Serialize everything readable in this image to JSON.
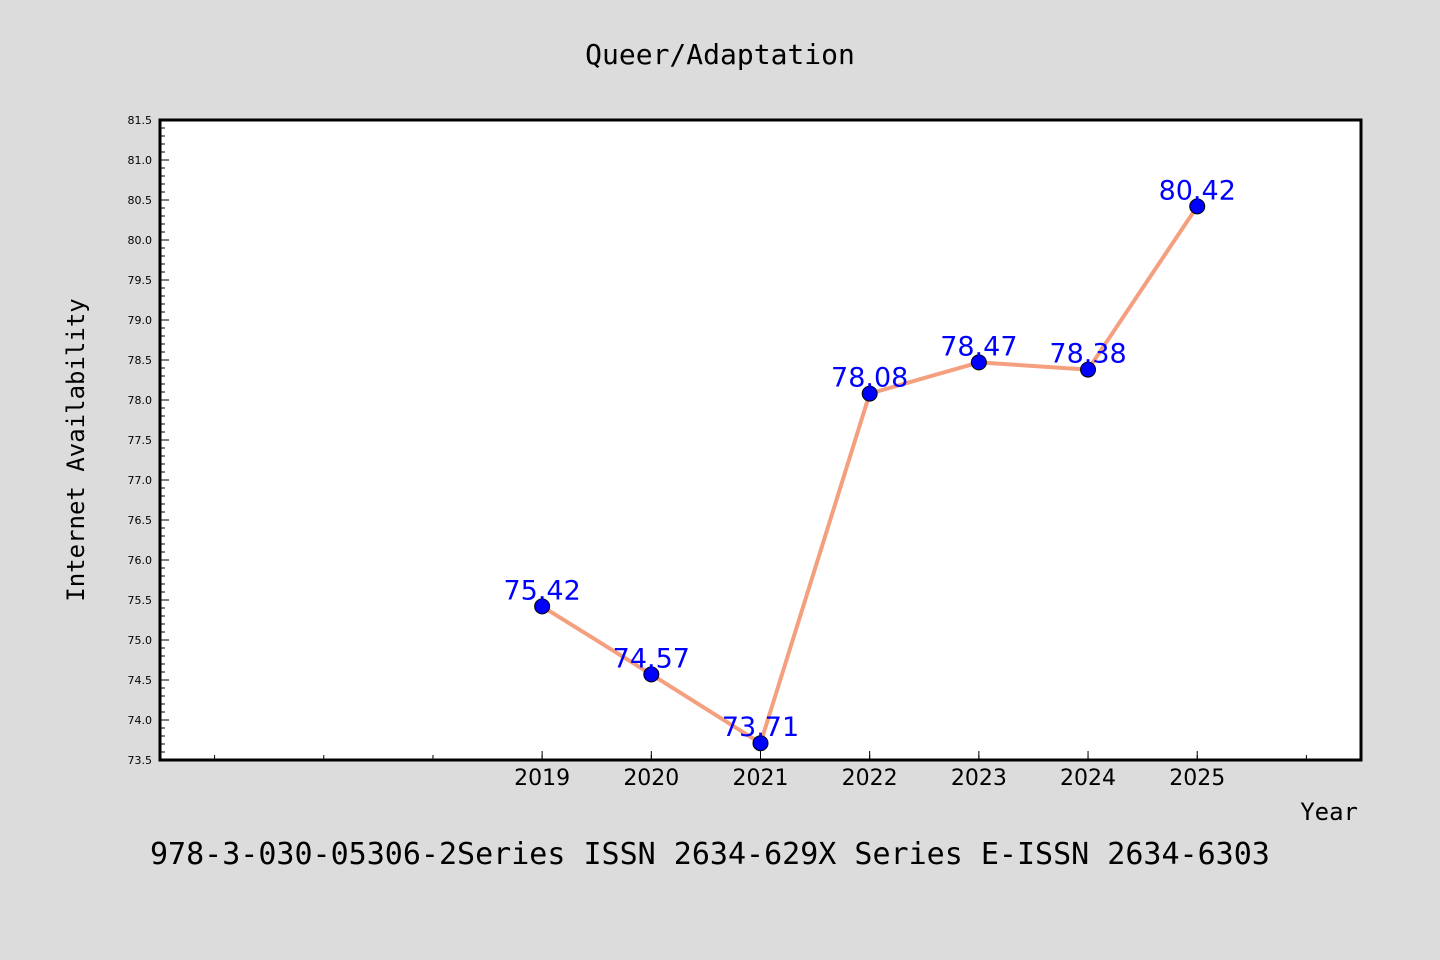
{
  "chart_data": {
    "type": "line",
    "title": "Queer/Adaptation",
    "xlabel": "Year",
    "ylabel": "Internet Availability",
    "x": [
      2019,
      2020,
      2021,
      2022,
      2023,
      2024,
      2025
    ],
    "x_tick_labels": [
      "2019",
      "2020",
      "2021",
      "2022",
      "2023",
      "2024",
      "2025"
    ],
    "xlim": [
      2015.5,
      2026.5
    ],
    "y": [
      75.42,
      74.57,
      73.71,
      78.08,
      78.47,
      78.38,
      80.42
    ],
    "data_labels": [
      "75.42",
      "74.57",
      "73.71",
      "78.08",
      "78.47",
      "78.38",
      "80.42"
    ],
    "ylim": [
      73.5,
      81.5
    ],
    "y_ticks": [
      73.5,
      74.0,
      74.5,
      75.0,
      75.5,
      76.0,
      76.5,
      77.0,
      77.5,
      78.0,
      78.5,
      79.0,
      79.5,
      80.0,
      80.5,
      81.0,
      81.5
    ],
    "grid": false,
    "line_color": "#f4a07e",
    "marker_color": "#0000ff"
  },
  "caption": "978-3-030-05306-2Series ISSN 2634-629X Series E-ISSN 2634-6303",
  "colors": {
    "background": "#dcdcdc",
    "plot_background": "#ffffff"
  }
}
